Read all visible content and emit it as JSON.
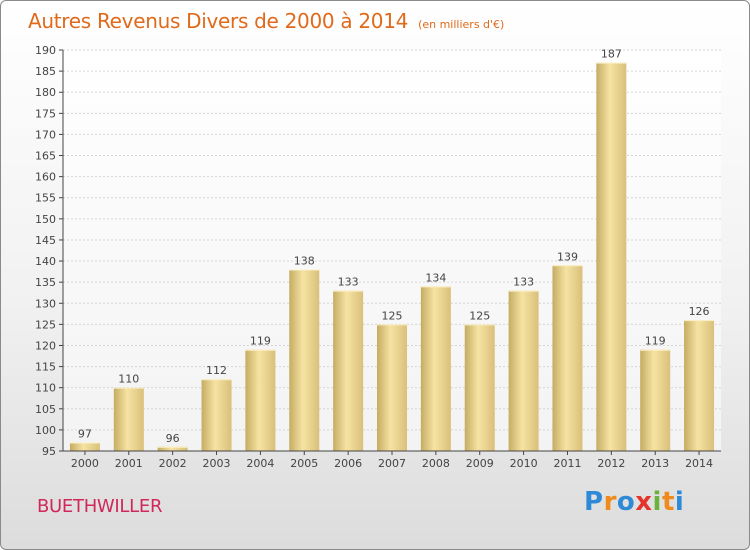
{
  "chart_data": {
    "type": "bar",
    "title": "Autres Revenus Divers de 2000 à 2014",
    "subtitle": "(en milliers d'€)",
    "categories": [
      "2000",
      "2001",
      "2002",
      "2003",
      "2004",
      "2005",
      "2006",
      "2007",
      "2008",
      "2009",
      "2010",
      "2011",
      "2012",
      "2013",
      "2014"
    ],
    "values": [
      97,
      110,
      96,
      112,
      119,
      138,
      133,
      125,
      134,
      125,
      133,
      139,
      187,
      119,
      126
    ],
    "ylim": [
      95,
      190
    ],
    "yticks": [
      95,
      100,
      105,
      110,
      115,
      120,
      125,
      130,
      135,
      140,
      145,
      150,
      155,
      160,
      165,
      170,
      175,
      180,
      185,
      190
    ],
    "grid": true,
    "xlabel": "",
    "ylabel": "",
    "colors": {
      "bar_light": "#f6e3a3",
      "bar_dark": "#c5ac62",
      "grid": "#d6d6d6",
      "axis": "#444444",
      "title": "#e06a1a"
    }
  },
  "footer": {
    "city": "BUETHWILLER",
    "city_color": "#d0285a",
    "logo_letters": [
      {
        "char": "P",
        "color": "#2e8ad6"
      },
      {
        "char": "r",
        "color": "#f08a1c"
      },
      {
        "char": "o",
        "color": "#2e8ad6"
      },
      {
        "char": "x",
        "color": "#e4342b"
      },
      {
        "char": "i",
        "color": "#6ab23c"
      },
      {
        "char": "t",
        "color": "#f08a1c"
      },
      {
        "char": "i",
        "color": "#2e8ad6"
      }
    ]
  }
}
